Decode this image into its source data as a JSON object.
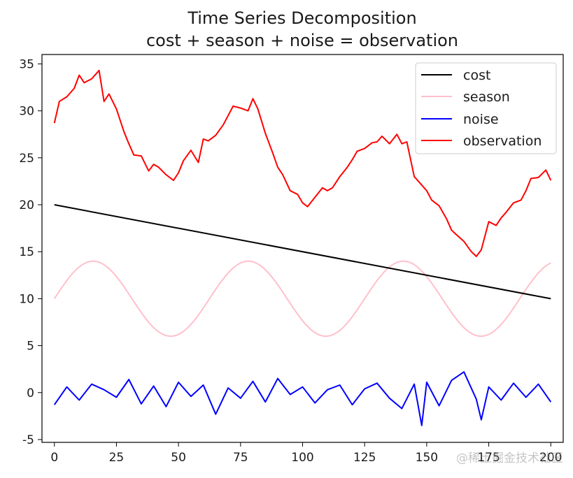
{
  "chart_data": {
    "type": "line",
    "title": "Time Series Decomposition",
    "subtitle": "cost + season + noise = observation",
    "xlabel": "",
    "ylabel": "",
    "xlim": [
      -5,
      205
    ],
    "ylim": [
      -5.3,
      36
    ],
    "x_ticks": [
      0,
      25,
      50,
      75,
      100,
      125,
      150,
      175,
      200
    ],
    "y_ticks": [
      -5,
      0,
      5,
      10,
      15,
      20,
      25,
      30,
      35
    ],
    "grid": false,
    "legend_position": "top-right",
    "series": [
      {
        "name": "cost",
        "color": "#000000",
        "x_start": 0,
        "x_end": 200,
        "y_start": 20,
        "y_end": 10,
        "description": "linear trend"
      },
      {
        "name": "season",
        "color": "#ffc0cb",
        "offset": 10,
        "amplitude": 4,
        "period": 62.5,
        "x_start": 0,
        "x_end": 200
      },
      {
        "name": "noise",
        "color": "#0000ff",
        "x": [
          0,
          5,
          10,
          15,
          20,
          25,
          30,
          35,
          40,
          45,
          50,
          55,
          60,
          65,
          70,
          75,
          80,
          85,
          90,
          95,
          100,
          105,
          110,
          115,
          120,
          125,
          130,
          135,
          140,
          145,
          148,
          150,
          155,
          160,
          165,
          170,
          172,
          175,
          180,
          185,
          190,
          195,
          200
        ],
        "values": [
          -1.3,
          0.6,
          -0.8,
          0.9,
          0.3,
          -0.5,
          1.4,
          -1.2,
          0.7,
          -1.5,
          1.1,
          -0.4,
          0.8,
          -2.3,
          0.5,
          -0.6,
          1.2,
          -1.0,
          1.5,
          -0.2,
          0.6,
          -1.1,
          0.3,
          0.8,
          -1.3,
          0.4,
          1.0,
          -0.6,
          -1.7,
          0.9,
          -3.5,
          1.1,
          -1.4,
          1.3,
          2.2,
          -0.7,
          -2.9,
          0.6,
          -0.8,
          1.0,
          -0.5,
          0.9,
          -1.0
        ]
      },
      {
        "name": "observation",
        "color": "#ff0000",
        "x": [
          0,
          2,
          5,
          8,
          10,
          12,
          15,
          18,
          20,
          22,
          25,
          28,
          30,
          32,
          35,
          38,
          40,
          42,
          45,
          48,
          50,
          52,
          55,
          58,
          60,
          62,
          65,
          68,
          70,
          72,
          75,
          78,
          80,
          82,
          85,
          88,
          90,
          92,
          95,
          98,
          100,
          102,
          105,
          108,
          110,
          112,
          115,
          118,
          120,
          122,
          125,
          128,
          130,
          132,
          135,
          138,
          140,
          142,
          145,
          148,
          150,
          152,
          155,
          158,
          160,
          162,
          165,
          168,
          170,
          172,
          175,
          178,
          180,
          182,
          185,
          188,
          190,
          192,
          195,
          198,
          200
        ],
        "values": [
          28.7,
          31.0,
          31.5,
          32.4,
          33.8,
          33.0,
          33.4,
          34.3,
          31.0,
          31.8,
          30.2,
          27.8,
          26.5,
          25.3,
          25.2,
          23.6,
          24.3,
          24.0,
          23.2,
          22.6,
          23.4,
          24.7,
          25.8,
          24.5,
          27.0,
          26.8,
          27.4,
          28.5,
          29.5,
          30.5,
          30.3,
          30.0,
          31.3,
          30.2,
          27.6,
          25.5,
          24.0,
          23.2,
          21.5,
          21.1,
          20.2,
          19.8,
          20.8,
          21.8,
          21.5,
          21.8,
          23.0,
          24.0,
          24.8,
          25.7,
          26.0,
          26.6,
          26.7,
          27.3,
          26.5,
          27.5,
          26.5,
          26.7,
          23.0,
          22.1,
          21.5,
          20.5,
          19.9,
          18.5,
          17.3,
          16.8,
          16.1,
          15.0,
          14.5,
          15.2,
          18.2,
          17.8,
          18.6,
          19.2,
          20.2,
          20.5,
          21.5,
          22.8,
          22.9,
          23.7,
          22.6
        ]
      }
    ]
  },
  "watermark": "@稀土掘金技术社区"
}
